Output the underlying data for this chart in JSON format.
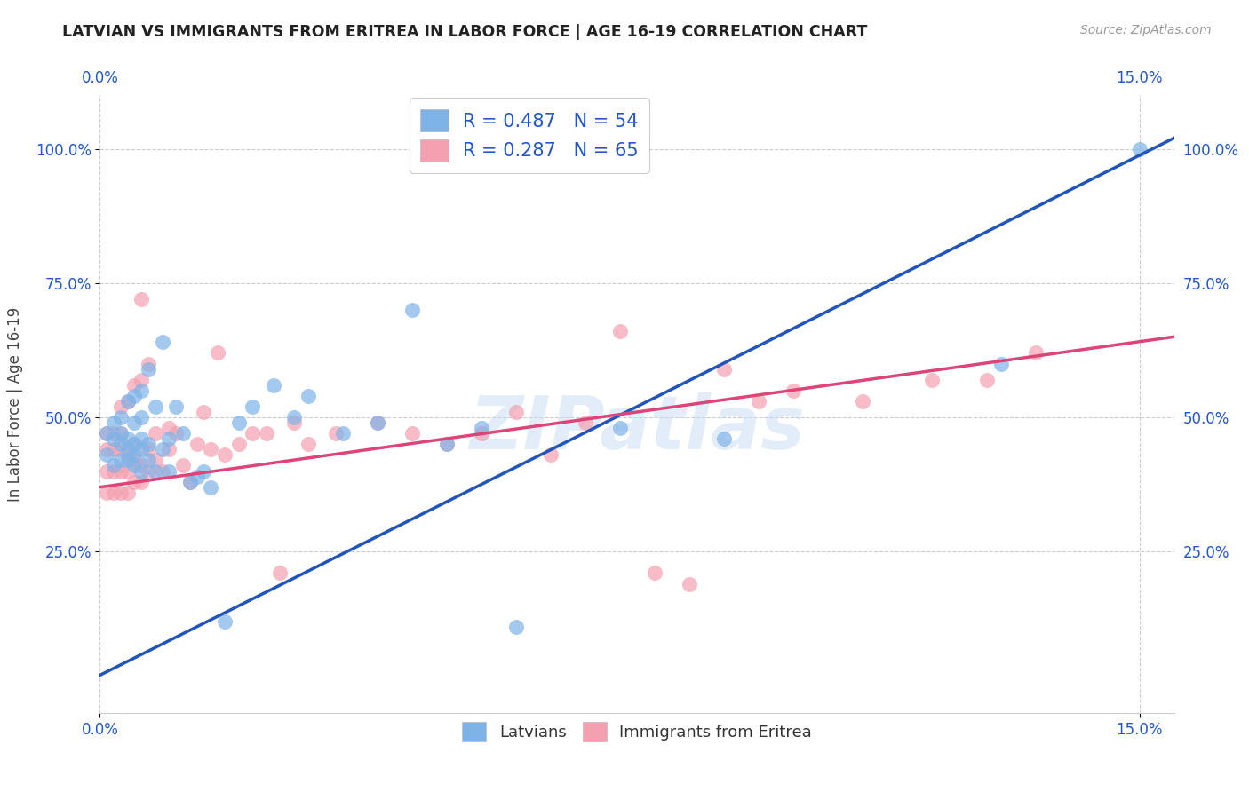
{
  "title": "LATVIAN VS IMMIGRANTS FROM ERITREA IN LABOR FORCE | AGE 16-19 CORRELATION CHART",
  "source": "Source: ZipAtlas.com",
  "ylabel": "In Labor Force | Age 16-19",
  "xlim": [
    0.0,
    0.155
  ],
  "ylim": [
    -0.05,
    1.1
  ],
  "blue_color": "#7EB3E8",
  "pink_color": "#F4A0B0",
  "blue_line_color": "#2255BB",
  "pink_line_color": "#DD4477",
  "legend_blue_label": "R = 0.487   N = 54",
  "legend_pink_label": "R = 0.287   N = 65",
  "legend_blue_series": "Latvians",
  "legend_pink_series": "Immigrants from Eritrea",
  "watermark": "ZIPatlas",
  "blue_x": [
    0.001,
    0.001,
    0.002,
    0.002,
    0.002,
    0.003,
    0.003,
    0.003,
    0.003,
    0.004,
    0.004,
    0.004,
    0.004,
    0.005,
    0.005,
    0.005,
    0.005,
    0.005,
    0.006,
    0.006,
    0.006,
    0.006,
    0.006,
    0.007,
    0.007,
    0.007,
    0.008,
    0.008,
    0.009,
    0.009,
    0.01,
    0.01,
    0.011,
    0.012,
    0.013,
    0.014,
    0.015,
    0.016,
    0.018,
    0.02,
    0.022,
    0.025,
    0.028,
    0.03,
    0.035,
    0.04,
    0.045,
    0.05,
    0.055,
    0.06,
    0.075,
    0.09,
    0.13,
    0.15
  ],
  "blue_y": [
    0.43,
    0.47,
    0.41,
    0.46,
    0.49,
    0.42,
    0.45,
    0.47,
    0.5,
    0.42,
    0.44,
    0.46,
    0.53,
    0.41,
    0.43,
    0.45,
    0.49,
    0.54,
    0.4,
    0.44,
    0.46,
    0.5,
    0.55,
    0.42,
    0.45,
    0.59,
    0.4,
    0.52,
    0.44,
    0.64,
    0.4,
    0.46,
    0.52,
    0.47,
    0.38,
    0.39,
    0.4,
    0.37,
    0.12,
    0.49,
    0.52,
    0.56,
    0.5,
    0.54,
    0.47,
    0.49,
    0.7,
    0.45,
    0.48,
    0.11,
    0.48,
    0.46,
    0.6,
    1.0
  ],
  "pink_x": [
    0.001,
    0.001,
    0.001,
    0.001,
    0.002,
    0.002,
    0.002,
    0.002,
    0.003,
    0.003,
    0.003,
    0.003,
    0.003,
    0.004,
    0.004,
    0.004,
    0.004,
    0.005,
    0.005,
    0.005,
    0.005,
    0.006,
    0.006,
    0.006,
    0.006,
    0.007,
    0.007,
    0.007,
    0.008,
    0.008,
    0.009,
    0.01,
    0.01,
    0.011,
    0.012,
    0.013,
    0.014,
    0.015,
    0.016,
    0.017,
    0.018,
    0.02,
    0.022,
    0.024,
    0.026,
    0.028,
    0.03,
    0.034,
    0.04,
    0.045,
    0.05,
    0.055,
    0.06,
    0.065,
    0.07,
    0.075,
    0.08,
    0.085,
    0.09,
    0.095,
    0.1,
    0.11,
    0.12,
    0.128,
    0.135
  ],
  "pink_y": [
    0.36,
    0.4,
    0.44,
    0.47,
    0.36,
    0.4,
    0.44,
    0.47,
    0.36,
    0.4,
    0.44,
    0.47,
    0.52,
    0.36,
    0.4,
    0.43,
    0.53,
    0.38,
    0.42,
    0.45,
    0.56,
    0.38,
    0.41,
    0.57,
    0.72,
    0.4,
    0.44,
    0.6,
    0.42,
    0.47,
    0.4,
    0.44,
    0.48,
    0.47,
    0.41,
    0.38,
    0.45,
    0.51,
    0.44,
    0.62,
    0.43,
    0.45,
    0.47,
    0.47,
    0.21,
    0.49,
    0.45,
    0.47,
    0.49,
    0.47,
    0.45,
    0.47,
    0.51,
    0.43,
    0.49,
    0.66,
    0.21,
    0.19,
    0.59,
    0.53,
    0.55,
    0.53,
    0.57,
    0.57,
    0.62
  ]
}
